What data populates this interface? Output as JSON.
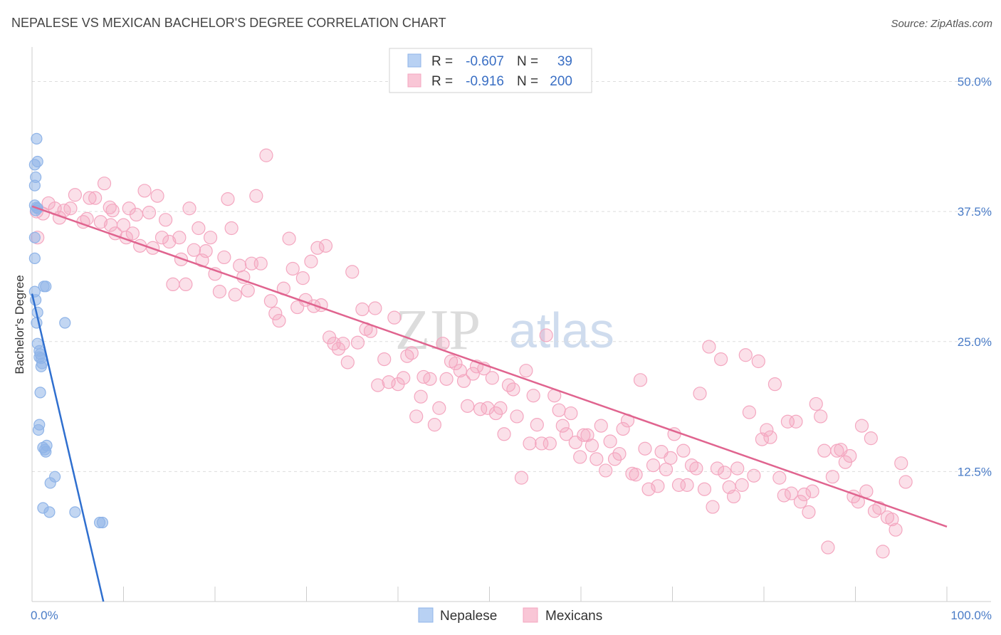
{
  "chart_data": {
    "type": "scatter",
    "title": "NEPALESE VS MEXICAN BACHELOR'S DEGREE CORRELATION CHART",
    "source": "Source: ZipAtlas.com",
    "ylabel": "Bachelor's Degree",
    "xlabel": "",
    "xlim": [
      0,
      100
    ],
    "ylim": [
      0,
      52.5
    ],
    "x_tick_labels": [
      "0.0%",
      "100.0%"
    ],
    "y_ticks": [
      12.5,
      25.0,
      37.5,
      50.0
    ],
    "y_tick_labels": [
      "12.5%",
      "25.0%",
      "37.5%",
      "50.0%"
    ],
    "grid": true,
    "watermark": [
      "ZIP",
      "atlas"
    ],
    "legend": {
      "rows": [
        {
          "r_label": "R =",
          "r_value": "-0.607",
          "n_label": "N =",
          "n_value": "39"
        },
        {
          "r_label": "R =",
          "r_value": "-0.916",
          "n_label": "N =",
          "n_value": "200"
        }
      ]
    },
    "series": [
      {
        "name": "Nepalese",
        "color": "#8fb4e8",
        "line_color": "#2f6fcf",
        "trend": {
          "x": [
            0.0,
            7.8
          ],
          "y": [
            29.6,
            0.0
          ]
        },
        "points": [
          [
            0.5,
            44.5
          ],
          [
            0.6,
            42.3
          ],
          [
            0.3,
            42.0
          ],
          [
            0.4,
            40.8
          ],
          [
            0.3,
            40.0
          ],
          [
            0.3,
            38.1
          ],
          [
            0.6,
            37.8
          ],
          [
            0.4,
            37.6
          ],
          [
            0.5,
            37.9
          ],
          [
            0.3,
            35.0
          ],
          [
            0.3,
            33.0
          ],
          [
            1.3,
            30.3
          ],
          [
            1.5,
            30.3
          ],
          [
            0.3,
            29.8
          ],
          [
            0.4,
            29.0
          ],
          [
            0.6,
            27.8
          ],
          [
            3.6,
            26.8
          ],
          [
            0.5,
            26.8
          ],
          [
            0.6,
            24.8
          ],
          [
            0.8,
            24.1
          ],
          [
            0.9,
            23.8
          ],
          [
            0.8,
            23.5
          ],
          [
            1.0,
            23.4
          ],
          [
            1.1,
            22.9
          ],
          [
            1.0,
            22.6
          ],
          [
            0.9,
            20.1
          ],
          [
            0.8,
            17.0
          ],
          [
            0.7,
            16.5
          ],
          [
            1.6,
            15.0
          ],
          [
            1.2,
            14.8
          ],
          [
            1.4,
            14.6
          ],
          [
            1.5,
            14.4
          ],
          [
            2.5,
            12.0
          ],
          [
            2.0,
            11.4
          ],
          [
            1.2,
            9.0
          ],
          [
            1.9,
            8.6
          ],
          [
            4.7,
            8.6
          ],
          [
            7.4,
            7.6
          ],
          [
            7.7,
            7.6
          ]
        ]
      },
      {
        "name": "Mexicans",
        "color": "#f4a7c0",
        "line_color": "#e0648f",
        "trend": {
          "x": [
            0.0,
            100.0
          ],
          "y": [
            38.0,
            7.2
          ]
        },
        "points": [
          [
            0.5,
            37.5
          ],
          [
            0.6,
            35.0
          ],
          [
            1.2,
            37.3
          ],
          [
            1.8,
            38.3
          ],
          [
            2.5,
            37.8
          ],
          [
            3.0,
            36.9
          ],
          [
            3.5,
            37.6
          ],
          [
            4.2,
            37.8
          ],
          [
            4.7,
            39.1
          ],
          [
            5.6,
            36.5
          ],
          [
            6.0,
            36.8
          ],
          [
            6.3,
            38.8
          ],
          [
            6.9,
            38.8
          ],
          [
            7.5,
            36.5
          ],
          [
            7.9,
            40.2
          ],
          [
            8.5,
            37.9
          ],
          [
            8.6,
            36.2
          ],
          [
            8.8,
            37.6
          ],
          [
            9.1,
            35.4
          ],
          [
            10.0,
            36.2
          ],
          [
            10.3,
            35.0
          ],
          [
            10.6,
            37.8
          ],
          [
            11.0,
            35.4
          ],
          [
            11.4,
            37.2
          ],
          [
            11.8,
            34.2
          ],
          [
            12.3,
            39.5
          ],
          [
            12.8,
            37.4
          ],
          [
            13.2,
            34.0
          ],
          [
            13.7,
            39.0
          ],
          [
            14.2,
            35.0
          ],
          [
            14.6,
            36.7
          ],
          [
            15.0,
            34.6
          ],
          [
            15.4,
            30.5
          ],
          [
            16.1,
            35.0
          ],
          [
            16.3,
            32.9
          ],
          [
            16.8,
            30.5
          ],
          [
            17.2,
            37.8
          ],
          [
            17.7,
            33.8
          ],
          [
            18.2,
            35.9
          ],
          [
            18.6,
            32.8
          ],
          [
            19.0,
            33.7
          ],
          [
            19.5,
            35.0
          ],
          [
            20.0,
            31.5
          ],
          [
            20.5,
            29.8
          ],
          [
            21.0,
            33.1
          ],
          [
            21.4,
            38.7
          ],
          [
            21.8,
            35.9
          ],
          [
            22.2,
            29.5
          ],
          [
            22.7,
            32.3
          ],
          [
            23.1,
            31.2
          ],
          [
            23.6,
            29.9
          ],
          [
            24.0,
            32.5
          ],
          [
            24.5,
            39.0
          ],
          [
            25.0,
            32.5
          ],
          [
            25.6,
            42.9
          ],
          [
            26.1,
            28.9
          ],
          [
            26.6,
            27.7
          ],
          [
            27.0,
            27.0
          ],
          [
            27.5,
            30.1
          ],
          [
            28.1,
            34.9
          ],
          [
            28.5,
            32.0
          ],
          [
            29.0,
            28.3
          ],
          [
            29.6,
            31.1
          ],
          [
            29.9,
            29.0
          ],
          [
            30.5,
            32.7
          ],
          [
            30.8,
            28.4
          ],
          [
            31.2,
            34.0
          ],
          [
            31.6,
            28.5
          ],
          [
            32.1,
            34.2
          ],
          [
            32.5,
            25.4
          ],
          [
            33.0,
            24.8
          ],
          [
            33.5,
            24.3
          ],
          [
            34.0,
            24.8
          ],
          [
            34.5,
            23.0
          ],
          [
            35.0,
            31.7
          ],
          [
            35.6,
            24.9
          ],
          [
            36.1,
            28.1
          ],
          [
            36.5,
            26.2
          ],
          [
            37.0,
            26.0
          ],
          [
            37.5,
            28.2
          ],
          [
            37.8,
            20.8
          ],
          [
            38.5,
            23.3
          ],
          [
            39.0,
            21.1
          ],
          [
            39.6,
            27.3
          ],
          [
            40.0,
            20.9
          ],
          [
            40.6,
            21.5
          ],
          [
            41.0,
            23.6
          ],
          [
            41.5,
            23.9
          ],
          [
            42.0,
            17.8
          ],
          [
            42.5,
            19.7
          ],
          [
            42.8,
            21.6
          ],
          [
            43.5,
            21.4
          ],
          [
            44.0,
            17.0
          ],
          [
            44.5,
            18.6
          ],
          [
            44.9,
            24.8
          ],
          [
            45.3,
            21.4
          ],
          [
            45.8,
            23.1
          ],
          [
            46.3,
            22.9
          ],
          [
            46.8,
            22.2
          ],
          [
            47.2,
            21.2
          ],
          [
            47.6,
            18.8
          ],
          [
            48.2,
            21.9
          ],
          [
            48.6,
            22.6
          ],
          [
            49.0,
            18.5
          ],
          [
            49.4,
            22.4
          ],
          [
            49.8,
            18.6
          ],
          [
            50.3,
            21.5
          ],
          [
            50.7,
            18.1
          ],
          [
            51.2,
            18.6
          ],
          [
            51.6,
            16.1
          ],
          [
            52.1,
            20.8
          ],
          [
            52.6,
            20.4
          ],
          [
            53.0,
            17.8
          ],
          [
            53.5,
            11.9
          ],
          [
            54.0,
            22.2
          ],
          [
            54.4,
            15.2
          ],
          [
            54.8,
            19.8
          ],
          [
            55.2,
            17.0
          ],
          [
            55.7,
            15.2
          ],
          [
            56.2,
            25.6
          ],
          [
            56.6,
            15.2
          ],
          [
            57.1,
            19.8
          ],
          [
            57.6,
            18.4
          ],
          [
            58.0,
            16.9
          ],
          [
            58.4,
            16.1
          ],
          [
            58.9,
            18.1
          ],
          [
            59.4,
            15.3
          ],
          [
            59.9,
            13.9
          ],
          [
            60.3,
            16.0
          ],
          [
            60.7,
            16.0
          ],
          [
            61.2,
            15.0
          ],
          [
            61.7,
            13.7
          ],
          [
            62.2,
            16.9
          ],
          [
            62.7,
            12.6
          ],
          [
            63.2,
            15.4
          ],
          [
            63.7,
            13.7
          ],
          [
            64.2,
            14.2
          ],
          [
            64.6,
            16.6
          ],
          [
            65.1,
            17.4
          ],
          [
            65.6,
            12.3
          ],
          [
            66.0,
            12.2
          ],
          [
            66.5,
            21.3
          ],
          [
            67.0,
            14.7
          ],
          [
            67.4,
            10.8
          ],
          [
            67.9,
            13.1
          ],
          [
            68.4,
            11.1
          ],
          [
            68.8,
            14.4
          ],
          [
            69.3,
            12.7
          ],
          [
            69.8,
            13.8
          ],
          [
            70.2,
            16.1
          ],
          [
            70.7,
            11.2
          ],
          [
            71.2,
            14.5
          ],
          [
            71.6,
            11.2
          ],
          [
            72.1,
            13.1
          ],
          [
            72.6,
            12.8
          ],
          [
            73.0,
            20.0
          ],
          [
            73.5,
            10.8
          ],
          [
            74.0,
            24.5
          ],
          [
            74.4,
            9.1
          ],
          [
            74.9,
            12.8
          ],
          [
            75.3,
            23.3
          ],
          [
            75.7,
            12.4
          ],
          [
            76.2,
            11.0
          ],
          [
            76.7,
            10.1
          ],
          [
            77.1,
            12.8
          ],
          [
            77.6,
            11.2
          ],
          [
            78.0,
            23.7
          ],
          [
            78.4,
            18.2
          ],
          [
            78.9,
            12.1
          ],
          [
            79.4,
            23.1
          ],
          [
            79.8,
            15.6
          ],
          [
            80.3,
            16.5
          ],
          [
            80.7,
            15.8
          ],
          [
            81.2,
            20.9
          ],
          [
            81.7,
            11.9
          ],
          [
            82.2,
            10.2
          ],
          [
            82.6,
            17.3
          ],
          [
            83.0,
            10.4
          ],
          [
            83.5,
            17.3
          ],
          [
            84.0,
            9.6
          ],
          [
            84.4,
            10.3
          ],
          [
            84.9,
            8.6
          ],
          [
            85.3,
            10.6
          ],
          [
            85.7,
            19.0
          ],
          [
            86.2,
            17.8
          ],
          [
            86.6,
            14.5
          ],
          [
            87.0,
            5.2
          ],
          [
            87.5,
            12.0
          ],
          [
            88.0,
            14.5
          ],
          [
            88.4,
            14.6
          ],
          [
            88.9,
            13.4
          ],
          [
            89.4,
            14.0
          ],
          [
            89.8,
            10.1
          ],
          [
            90.3,
            9.6
          ],
          [
            90.7,
            16.9
          ],
          [
            91.2,
            10.6
          ],
          [
            91.7,
            15.7
          ],
          [
            92.1,
            8.7
          ],
          [
            92.6,
            9.0
          ],
          [
            93.0,
            4.8
          ],
          [
            93.5,
            8.1
          ],
          [
            94.0,
            7.9
          ],
          [
            94.4,
            6.9
          ],
          [
            95.0,
            13.3
          ],
          [
            95.5,
            11.5
          ]
        ]
      }
    ]
  }
}
